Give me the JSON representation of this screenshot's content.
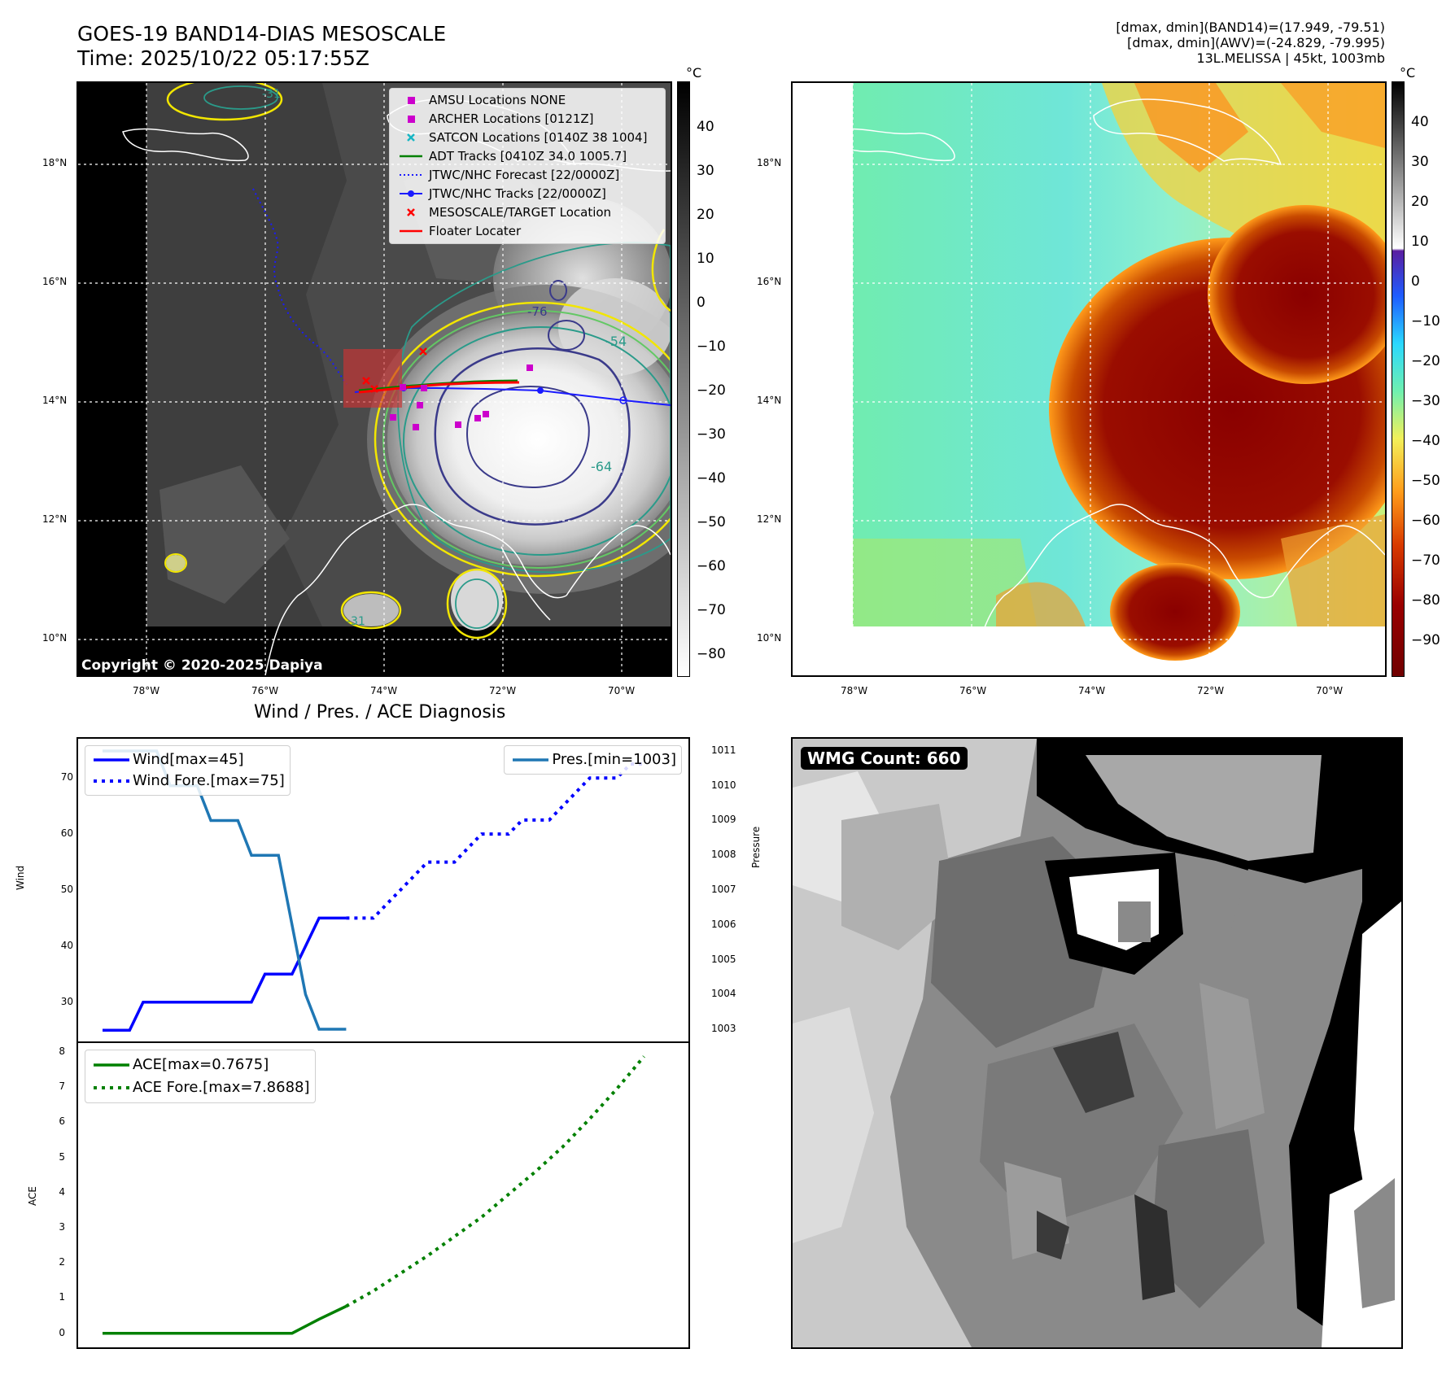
{
  "header": {
    "title_line1": "GOES-19 BAND14-DIAS MESOSCALE",
    "title_line2": "Time: 2025/10/22 05:17:55Z",
    "info_line1": "[dmax, dmin](BAND14)=(17.949, -79.51)",
    "info_line2": "[dmax, dmin](AWV)=(-24.829, -79.995)",
    "info_line3": "13L.MELISSA | 45kt, 1003mb"
  },
  "ir_map": {
    "lat_labels": [
      "18°N",
      "16°N",
      "14°N",
      "12°N",
      "10°N"
    ],
    "lon_labels": [
      "78°W",
      "76°W",
      "74°W",
      "72°W",
      "70°W"
    ],
    "contour_labels": [
      "-76",
      "-54",
      "-64",
      "-31",
      "-31"
    ],
    "copyright": "Copyright © 2020-2025 Dapiya",
    "colorbar": {
      "unit": "°C",
      "ticks": [
        "40",
        "30",
        "20",
        "10",
        "0",
        "−10",
        "−20",
        "−30",
        "−40",
        "−50",
        "−60",
        "−70",
        "−80"
      ]
    },
    "legend": [
      {
        "label": "AMSU Locations NONE",
        "symbol": "magenta-square-icon"
      },
      {
        "label": "ARCHER Locations [0121Z]",
        "symbol": "magenta-square-icon"
      },
      {
        "label": "SATCON Locations [0140Z 38 1004]",
        "symbol": "cyan-x-icon"
      },
      {
        "label": "ADT Tracks [0410Z 34.0 1005.7]",
        "symbol": "green-line-icon"
      },
      {
        "label": "JTWC/NHC Forecast [22/0000Z]",
        "symbol": "blue-dotted-line-icon"
      },
      {
        "label": "JTWC/NHC Tracks [22/0000Z]",
        "symbol": "blue-dot-line-icon"
      },
      {
        "label": "MESOSCALE/TARGET Location",
        "symbol": "red-x-icon"
      },
      {
        "label": "Floater Locater",
        "symbol": "red-line-icon"
      }
    ]
  },
  "wv_map": {
    "lat_labels": [
      "18°N",
      "16°N",
      "14°N",
      "12°N",
      "10°N"
    ],
    "lon_labels": [
      "78°W",
      "76°W",
      "74°W",
      "72°W",
      "70°W"
    ],
    "colorbar": {
      "unit": "°C",
      "ticks": [
        "40",
        "30",
        "20",
        "10",
        "0",
        "−10",
        "−20",
        "−30",
        "−40",
        "−50",
        "−60",
        "−70",
        "−80",
        "−90"
      ]
    }
  },
  "wmg": {
    "badge": "WMG Count: 660"
  },
  "colors": {
    "wind": "#0000ff",
    "pressure": "#1f77b4",
    "ace": "#008000"
  },
  "chart_data": [
    {
      "type": "line",
      "title": "Wind / Pres. / ACE Diagnosis",
      "ylabel": "Wind",
      "y2label": "Pressure",
      "ylim": [
        23,
        77
      ],
      "y2lim": [
        1002.65,
        1011.35
      ],
      "y_ticks": [
        "30",
        "40",
        "50",
        "60",
        "70"
      ],
      "y2_ticks": [
        "1003",
        "1004",
        "1005",
        "1006",
        "1007",
        "1008",
        "1009",
        "1010",
        "1011"
      ],
      "xlim": [
        0,
        41
      ],
      "series": [
        {
          "name": "Wind[max=45]",
          "style": "solid",
          "axis": "left",
          "x": [
            0,
            1,
            2,
            3,
            4,
            5,
            6,
            7,
            8,
            9,
            10,
            11,
            12,
            13,
            14,
            15,
            16,
            17,
            18
          ],
          "values": [
            25,
            25,
            25,
            30,
            30,
            30,
            30,
            30,
            30,
            30,
            30,
            30,
            35,
            35,
            35,
            40,
            45,
            45,
            45
          ]
        },
        {
          "name": "Wind Fore.[max=75]",
          "style": "dotted",
          "axis": "left",
          "x": [
            18,
            19,
            20,
            21,
            22,
            23,
            24,
            25,
            26,
            27,
            28,
            29,
            30,
            31,
            32,
            33,
            34,
            35,
            36,
            37,
            38,
            39,
            40
          ],
          "values": [
            45,
            45,
            45,
            47.5,
            50,
            52.5,
            55,
            55,
            55,
            57.5,
            60,
            60,
            60,
            62.5,
            62.5,
            62.5,
            65,
            67.5,
            70,
            70,
            70,
            72.5,
            72.5
          ]
        },
        {
          "name": "Pres.[min=1003]",
          "style": "solid",
          "axis": "right",
          "x": [
            0,
            1,
            2,
            3,
            4,
            5,
            6,
            7,
            8,
            9,
            10,
            11,
            12,
            13,
            14,
            15,
            16,
            17,
            18
          ],
          "values": [
            1011,
            1011,
            1011,
            1011,
            1011,
            1010,
            1010,
            1010,
            1009,
            1009,
            1009,
            1008,
            1008,
            1008,
            1006,
            1004,
            1003,
            1003,
            1003
          ]
        }
      ]
    },
    {
      "type": "line",
      "ylabel": "ACE",
      "ylim": [
        -0.4,
        8.25
      ],
      "y_ticks": [
        "0",
        "1",
        "2",
        "3",
        "4",
        "5",
        "6",
        "7",
        "8"
      ],
      "xlim": [
        0,
        41
      ],
      "series": [
        {
          "name": "ACE[max=0.7675]",
          "style": "solid",
          "x": [
            0,
            2,
            4,
            6,
            8,
            10,
            12,
            14,
            16,
            18
          ],
          "values": [
            0,
            0,
            0,
            0,
            0,
            0,
            0,
            0,
            0.4,
            0.7675
          ]
        },
        {
          "name": "ACE Fore.[max=7.8688]",
          "style": "dotted",
          "x": [
            18,
            20,
            22,
            24,
            26,
            28,
            30,
            32,
            34,
            36,
            38,
            40
          ],
          "values": [
            0.7675,
            1.2,
            1.7,
            2.2,
            2.75,
            3.3,
            3.95,
            4.6,
            5.3,
            6.1,
            6.95,
            7.8688
          ]
        }
      ]
    }
  ]
}
